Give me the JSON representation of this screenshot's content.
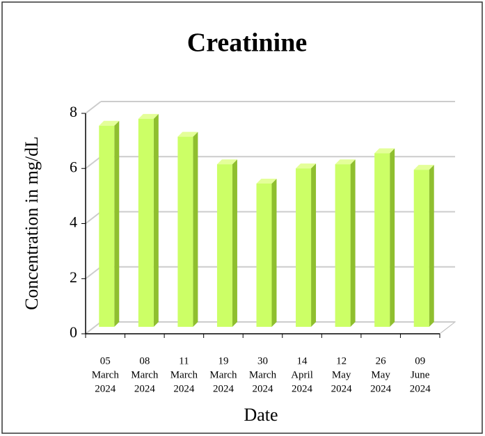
{
  "chart_data": {
    "type": "bar",
    "title": "Creatinine",
    "x_label": "Date",
    "y_label": "Concentration in mg/dL",
    "categories": [
      [
        "05",
        "March",
        "2024"
      ],
      [
        "08",
        "March",
        "2024"
      ],
      [
        "11",
        "March",
        "2024"
      ],
      [
        "19",
        "March",
        "2024"
      ],
      [
        "30",
        "March",
        "2024"
      ],
      [
        "14",
        "April",
        "2024"
      ],
      [
        "12",
        "May",
        "2024"
      ],
      [
        "26",
        "May",
        "2024"
      ],
      [
        "09",
        "June",
        "2024"
      ]
    ],
    "values": [
      7.3,
      7.55,
      6.9,
      5.9,
      5.2,
      5.75,
      5.9,
      6.3,
      5.7
    ],
    "color": "#ccff66",
    "ylim": [
      0,
      8
    ],
    "yticks": [
      0,
      2,
      4,
      6,
      8
    ],
    "grid": true
  }
}
